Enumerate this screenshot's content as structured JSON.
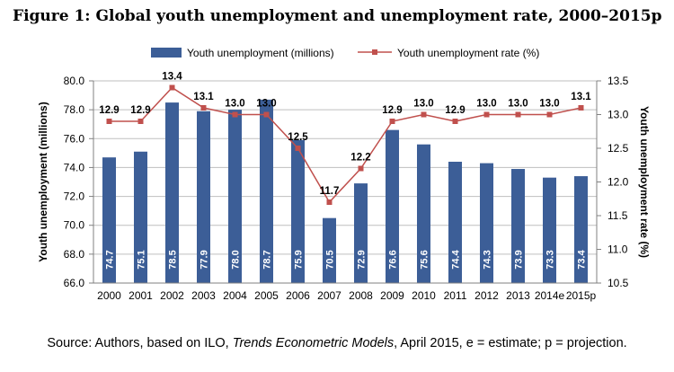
{
  "title": "Figure 1: Global youth unemployment and unemployment rate, 2000–2015p",
  "source": {
    "prefix": "Source: Authors, based on ILO, ",
    "italic": "Trends Econometric Models",
    "suffix": ", April 2015, e = estimate; p = projection."
  },
  "colors": {
    "bar": "#3c5e97",
    "line": "#c0504d"
  },
  "chart_data": {
    "type": "bar+line",
    "categories": [
      "2000",
      "2001",
      "2002",
      "2003",
      "2004",
      "2005",
      "2006",
      "2007",
      "2008",
      "2009",
      "2010",
      "2011",
      "2012",
      "2013",
      "2014e",
      "2015p"
    ],
    "series": [
      {
        "name": "Youth unemployment (millions)",
        "type": "bar",
        "axis": "left",
        "values": [
          74.7,
          75.1,
          78.5,
          77.9,
          78.0,
          78.7,
          75.9,
          70.5,
          72.9,
          76.6,
          75.6,
          74.4,
          74.3,
          73.9,
          73.3,
          73.4
        ]
      },
      {
        "name": "Youth unemployment rate (%)",
        "type": "line",
        "axis": "right",
        "values": [
          12.9,
          12.9,
          13.4,
          13.1,
          13.0,
          13.0,
          12.5,
          11.7,
          12.2,
          12.9,
          13.0,
          12.9,
          13.0,
          13.0,
          13.0,
          13.1
        ]
      }
    ],
    "y_left": {
      "label": "Youth unemployment (millions)",
      "min": 66.0,
      "max": 80.0,
      "ticks": [
        "66.0",
        "68.0",
        "70.0",
        "72.0",
        "74.0",
        "76.0",
        "78.0",
        "80.0"
      ]
    },
    "y_right": {
      "label": "Youth unemployment rate (%)",
      "min": 10.5,
      "max": 13.5,
      "ticks": [
        "10.5",
        "11.0",
        "11.5",
        "12.0",
        "12.5",
        "13.0",
        "13.5"
      ]
    },
    "bar_labels": [
      "74.7",
      "75.1",
      "78.5",
      "77.9",
      "78.0",
      "78.7",
      "75.9",
      "70.5",
      "72.9",
      "76.6",
      "75.6",
      "74.4",
      "74.3",
      "73.9",
      "73.3",
      "73.4"
    ],
    "line_labels": [
      "12.9",
      "12.9",
      "13.4",
      "13.1",
      "13.0",
      "13.0",
      "12.5",
      "11.7",
      "12.2",
      "12.9",
      "13.0",
      "12.9",
      "13.0",
      "13.0",
      "13.0",
      "13.1"
    ],
    "legend_position": "top",
    "grid": true
  }
}
